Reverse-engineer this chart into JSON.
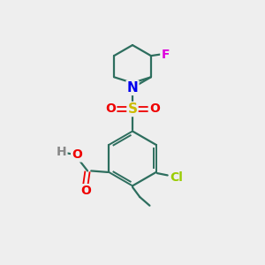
{
  "background_color": "#eeeeee",
  "atom_colors": {
    "C": "#2d6e5e",
    "N": "#0000ee",
    "O": "#ee0000",
    "S": "#ccbb00",
    "F": "#dd00dd",
    "Cl": "#99cc00",
    "H": "#888888"
  },
  "bond_color": "#2d6e5e",
  "figsize": [
    3.0,
    3.0
  ],
  "dpi": 100
}
